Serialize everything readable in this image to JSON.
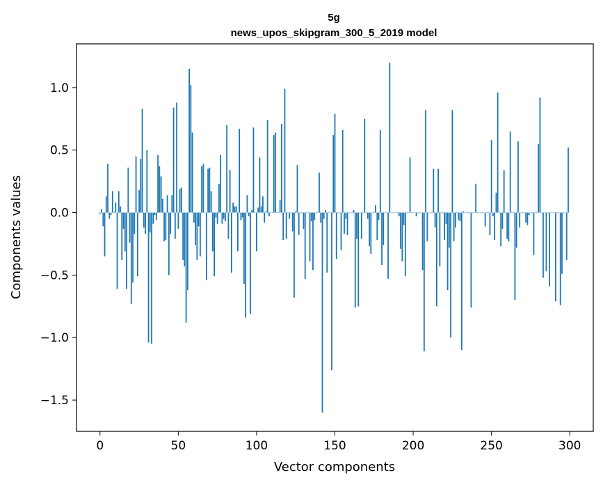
{
  "chart_data": {
    "type": "bar",
    "title_line1": "5g",
    "title_line2": "news_upos_skipgram_300_5_2019 model",
    "xlabel": "Vector components",
    "ylabel": "Components values",
    "xlim": [
      -15,
      315
    ],
    "ylim": [
      -1.75,
      1.35
    ],
    "xticks": [
      0,
      50,
      100,
      150,
      200,
      250,
      300
    ],
    "xtick_labels": [
      "0",
      "50",
      "100",
      "150",
      "200",
      "250",
      "300"
    ],
    "yticks": [
      -1.5,
      -1.0,
      -0.5,
      0.0,
      0.5,
      1.0
    ],
    "ytick_labels": [
      "−1.5",
      "−1.0",
      "−0.5",
      "0.0",
      "0.5",
      "1.0"
    ],
    "bar_color": "#1f77b4",
    "values": [
      -0.01,
      0.03,
      -0.11,
      -0.35,
      0.13,
      0.39,
      -0.05,
      -0.02,
      0.17,
      0.0,
      0.08,
      -0.61,
      0.17,
      0.05,
      -0.38,
      -0.13,
      -0.31,
      -0.61,
      0.36,
      -0.24,
      -0.73,
      -0.56,
      -0.17,
      0.45,
      -0.51,
      0.18,
      0.43,
      0.83,
      -0.12,
      -0.17,
      0.5,
      -1.04,
      -0.16,
      -1.05,
      -0.09,
      -0.02,
      -0.06,
      0.46,
      0.37,
      0.29,
      0.11,
      -0.23,
      -0.22,
      0.14,
      -0.5,
      -0.17,
      0.14,
      0.84,
      -0.21,
      0.88,
      -0.13,
      0.19,
      0.2,
      -0.38,
      -0.43,
      -0.88,
      -0.62,
      1.15,
      1.02,
      0.64,
      -0.08,
      -0.26,
      -0.38,
      -0.11,
      -0.35,
      0.37,
      0.39,
      0.0,
      -0.54,
      0.35,
      0.36,
      0.17,
      -0.31,
      -0.51,
      -0.04,
      -0.09,
      0.23,
      0.46,
      -0.09,
      -0.05,
      -0.07,
      0.7,
      -0.21,
      0.34,
      -0.48,
      0.08,
      0.05,
      0.05,
      -0.31,
      0.67,
      -0.06,
      -0.04,
      -0.57,
      -0.84,
      0.14,
      -0.03,
      -0.81,
      0.02,
      0.68,
      0.0,
      -0.31,
      0.04,
      0.44,
      0.05,
      0.13,
      -0.08,
      0.01,
      0.74,
      -0.03,
      0.0,
      0.0,
      0.62,
      0.64,
      0.0,
      0.0,
      0.1,
      0.71,
      -0.22,
      0.99,
      -0.21,
      0.0,
      -0.05,
      0.0,
      -0.15,
      -0.68,
      0.01,
      0.38,
      -0.18,
      0.0,
      0.0,
      -0.13,
      -0.53,
      0.0,
      0.0,
      -0.39,
      -0.07,
      -0.46,
      -0.06,
      0.0,
      0.0,
      0.32,
      -0.08,
      -1.6,
      -0.05,
      0.02,
      -0.48,
      0.0,
      0.0,
      -1.26,
      0.62,
      0.79,
      -0.37,
      0.0,
      0.0,
      -0.3,
      0.66,
      -0.17,
      -0.05,
      -0.18,
      0.0,
      0.0,
      0.0,
      0.02,
      -0.76,
      -0.21,
      -0.75,
      0.0,
      -0.21,
      0.0,
      0.75,
      0.0,
      -0.05,
      -0.27,
      -0.33,
      0.0,
      0.0,
      0.06,
      -0.22,
      -0.06,
      0.66,
      -0.42,
      -0.26,
      0.0,
      0.0,
      -0.53,
      1.2,
      0.0,
      0.0,
      0.0,
      0.0,
      0.0,
      -0.03,
      -0.29,
      -0.39,
      -0.1,
      -0.51,
      0.0,
      0.0,
      0.44,
      0.0,
      0.0,
      0.0,
      -0.03,
      0.0,
      0.0,
      0.0,
      -0.46,
      -1.11,
      0.82,
      -0.23,
      0.0,
      0.0,
      0.0,
      0.35,
      -0.12,
      -0.75,
      0.35,
      -0.43,
      0.0,
      0.0,
      -0.22,
      -0.09,
      -0.62,
      -0.28,
      -1.0,
      0.82,
      -0.23,
      -0.12,
      0.0,
      -0.06,
      -0.07,
      -1.1,
      0.01,
      0.0,
      0.0,
      0.0,
      0.0,
      -0.76,
      0.0,
      0.0,
      0.23,
      0.0,
      0.0,
      0.0,
      0.0,
      0.0,
      -0.11,
      0.0,
      0.0,
      -0.18,
      0.58,
      -0.03,
      -0.22,
      0.16,
      0.96,
      0.0,
      -0.27,
      -0.13,
      0.34,
      0.0,
      -0.21,
      -0.23,
      0.65,
      0.0,
      0.0,
      -0.7,
      -0.28,
      0.57,
      -0.12,
      0.0,
      0.0,
      0.0,
      -0.08,
      -0.1,
      -0.02,
      0.0,
      0.0,
      -0.34,
      0.0,
      0.0,
      0.55,
      0.92,
      0.0,
      -0.52,
      0.0,
      -0.47,
      0.0,
      -0.59,
      0.0,
      0.0,
      0.0,
      -0.71,
      0.0,
      0.0,
      -0.74,
      -0.49,
      0.0,
      0.0,
      -0.38,
      0.52
    ]
  }
}
